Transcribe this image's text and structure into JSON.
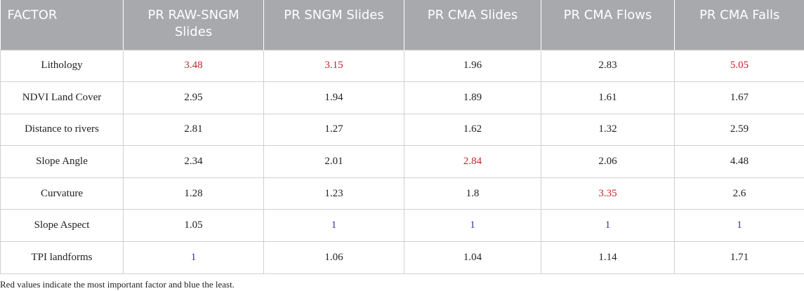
{
  "headers": [
    "FACTOR",
    "PR RAW-SNGM Slides",
    "PR SNGM Slides",
    "PR CMA Slides",
    "PR CMA Flows",
    "PR CMA Falls"
  ],
  "rows": [
    {
      "factor": "Lithology",
      "values": [
        "3.48",
        "3.15",
        "1.96",
        "2.83",
        "5.05"
      ],
      "highlight": [
        "red",
        "red",
        "",
        "",
        "red"
      ]
    },
    {
      "factor": "NDVI Land Cover",
      "values": [
        "2.95",
        "1.94",
        "1.89",
        "1.61",
        "1.67"
      ],
      "highlight": [
        "",
        "",
        "",
        "",
        ""
      ]
    },
    {
      "factor": "Distance to rivers",
      "values": [
        "2.81",
        "1.27",
        "1.62",
        "1.32",
        "2.59"
      ],
      "highlight": [
        "",
        "",
        "",
        "",
        ""
      ]
    },
    {
      "factor": "Slope Angle",
      "values": [
        "2.34",
        "2.01",
        "2.84",
        "2.06",
        "4.48"
      ],
      "highlight": [
        "",
        "",
        "red",
        "",
        ""
      ]
    },
    {
      "factor": "Curvature",
      "values": [
        "1.28",
        "1.23",
        "1.8",
        "3.35",
        "2.6"
      ],
      "highlight": [
        "",
        "",
        "",
        "red",
        ""
      ]
    },
    {
      "factor": "Slope Aspect",
      "values": [
        "1.05",
        "1",
        "1",
        "1",
        "1"
      ],
      "highlight": [
        "",
        "blue",
        "blue",
        "blue",
        "blue"
      ]
    },
    {
      "factor": "TPI landforms",
      "values": [
        "1",
        "1.06",
        "1.04",
        "1.14",
        "1.71"
      ],
      "highlight": [
        "blue",
        "",
        "",
        "",
        ""
      ]
    }
  ],
  "colors": {
    "red": "#c0262d",
    "blue": "#2b3a9c",
    "header_bg": "#a7a9ac"
  },
  "footnote": "Red values indicate the most important factor and blue the least."
}
